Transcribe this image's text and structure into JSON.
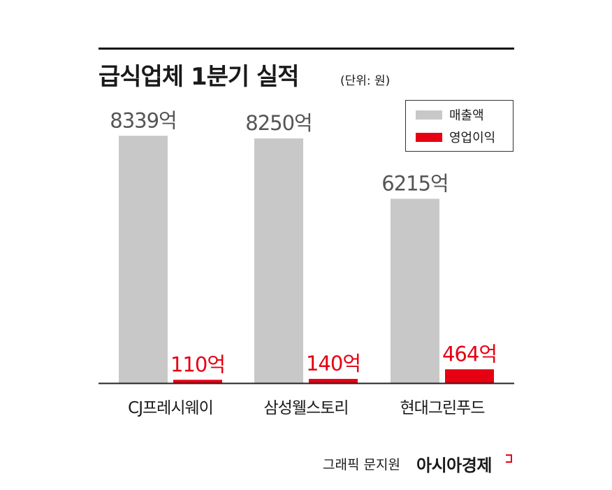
{
  "title": "급식업체 1분기 실적",
  "unit": "(단위: 원)",
  "legend": {
    "sales_label": "매출액",
    "profit_label": "영업이익"
  },
  "colors": {
    "sales": "#c8c8c8",
    "profit": "#e60012",
    "sales_text": "#555555",
    "profit_text": "#e60012"
  },
  "chart_data": {
    "type": "bar",
    "categories": [
      "CJ프레시웨이",
      "삼성웰스토리",
      "현대그린푸드"
    ],
    "series": [
      {
        "name": "매출액",
        "values": [
          8339,
          8250,
          6215
        ],
        "labels": [
          "8339억",
          "8250억",
          "6215억"
        ]
      },
      {
        "name": "영업이익",
        "values": [
          110,
          140,
          464
        ],
        "labels": [
          "110억",
          "140억",
          "464억"
        ]
      }
    ],
    "ylim": [
      0,
      9500
    ],
    "grid": false,
    "legend_position": "top-right"
  },
  "credit": "그래픽 문지원",
  "brand": "아시아경제"
}
